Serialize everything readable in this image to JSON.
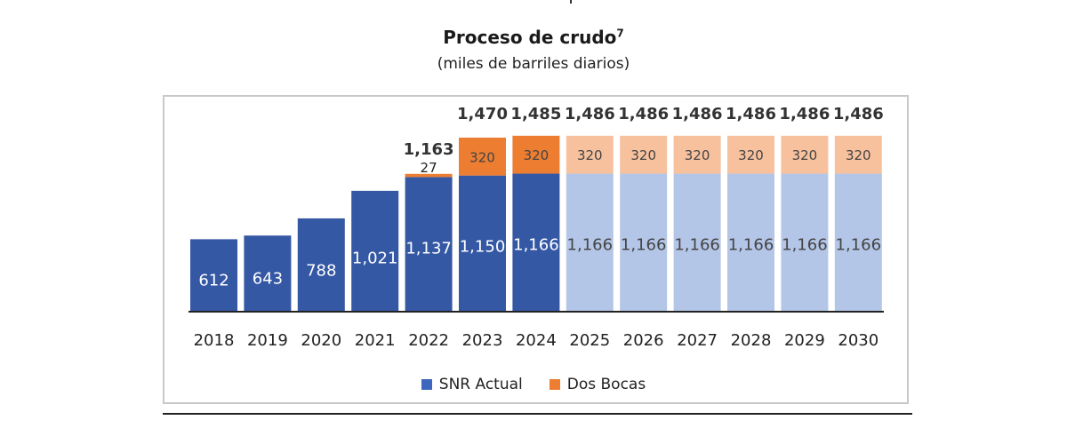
{
  "title": "Proceso de crudo",
  "title_sup": "7",
  "subtitle": "(miles de barriles diarios)",
  "colors": {
    "snr": "#3558a5",
    "snr_projected": "#b4c6e7",
    "dos_bocas": "#ed7d31",
    "dos_bocas_projected": "#f7c19e"
  },
  "legend": [
    {
      "label": "SNR Actual",
      "color": "#3e66bf"
    },
    {
      "label": "Dos Bocas",
      "color": "#ed7d31"
    }
  ],
  "chart_data": {
    "type": "bar",
    "stacked": true,
    "categories": [
      "2018",
      "2019",
      "2020",
      "2021",
      "2022",
      "2023",
      "2024",
      "2025",
      "2026",
      "2027",
      "2028",
      "2029",
      "2030"
    ],
    "series": [
      {
        "name": "SNR Actual",
        "values": [
          612,
          643,
          788,
          1021,
          1137,
          1150,
          1166,
          1166,
          1166,
          1166,
          1166,
          1166,
          1166
        ],
        "labels": [
          "612",
          "643",
          "788",
          "1,021",
          "1,137",
          "1,150",
          "1,166",
          "1,166",
          "1,166",
          "1,166",
          "1,166",
          "1,166",
          "1,166"
        ]
      },
      {
        "name": "Dos Bocas",
        "values": [
          0,
          0,
          0,
          0,
          27,
          320,
          320,
          320,
          320,
          320,
          320,
          320,
          320
        ],
        "labels": [
          "",
          "",
          "",
          "",
          "27",
          "320",
          "320",
          "320",
          "320",
          "320",
          "320",
          "320",
          "320"
        ]
      }
    ],
    "totals": [
      "",
      "",
      "",
      "",
      "1,163",
      "1,470",
      "1,485",
      "1,486",
      "1,486",
      "1,486",
      "1,486",
      "1,486",
      "1,486"
    ],
    "projected_from_index": 7,
    "title": "Proceso de crudo",
    "subtitle": "(miles de barriles diarios)",
    "xlabel": "",
    "ylabel": "",
    "ylim": [
      0,
      1500
    ],
    "legend_position": "bottom"
  }
}
